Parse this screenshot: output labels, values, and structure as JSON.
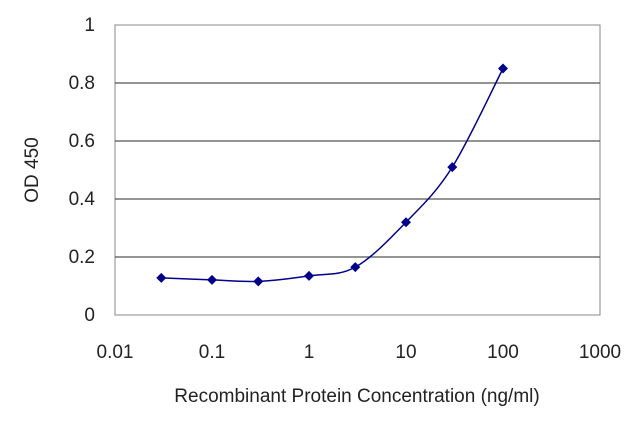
{
  "chart_data": {
    "type": "line",
    "title": "",
    "xlabel": "Recombinant Protein Concentration (ng/ml)",
    "ylabel": "OD 450",
    "xscale": "log",
    "xlim": [
      0.01,
      1000
    ],
    "ylim": [
      0,
      1
    ],
    "xticks": [
      "0.01",
      "0.1",
      "1",
      "10",
      "100",
      "1000"
    ],
    "yticks": [
      "0",
      "0.2",
      "0.4",
      "0.6",
      "0.8",
      "1"
    ],
    "grid": "horizontal",
    "legend": "none",
    "series": [
      {
        "color": "#00008b",
        "marker": "diamond",
        "x": [
          0.03,
          0.1,
          0.3,
          1,
          3,
          10,
          30,
          100
        ],
        "y": [
          0.128,
          0.121,
          0.116,
          0.135,
          0.165,
          0.32,
          0.51,
          0.85
        ]
      }
    ]
  }
}
